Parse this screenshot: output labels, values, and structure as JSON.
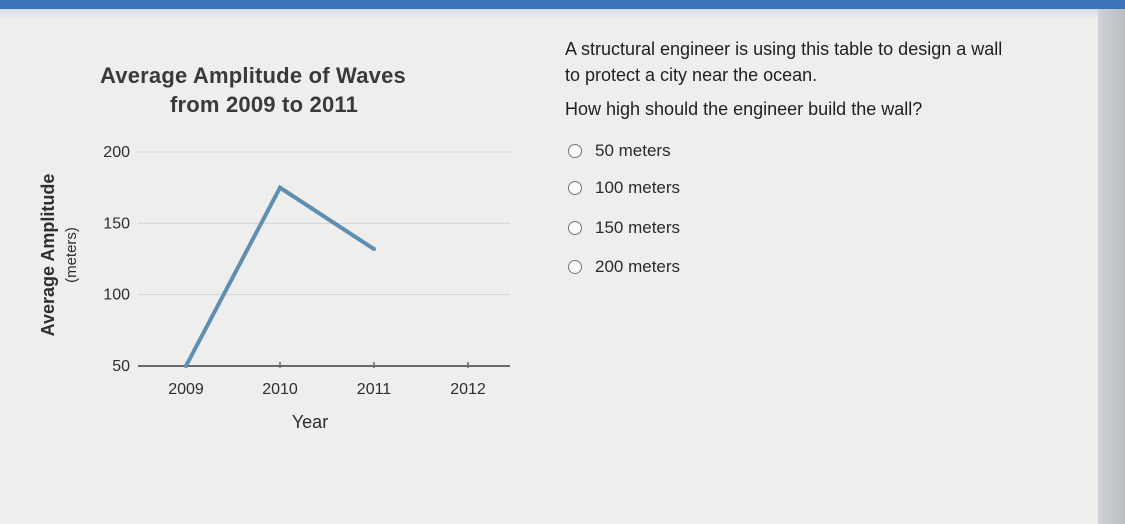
{
  "chart_data": {
    "type": "line",
    "title": "Average Amplitude of Waves",
    "subtitle": "from 2009 to 2011",
    "xlabel": "Year",
    "ylabel": "Average Amplitude",
    "ylabel_unit": "(meters)",
    "x_ticks": [
      "2009",
      "2010",
      "2011",
      "2012"
    ],
    "y_ticks": [
      "50",
      "100",
      "150",
      "200"
    ],
    "ylim": [
      50,
      200
    ],
    "xlim": [
      2009,
      2012
    ],
    "grid": "horizontal",
    "series": [
      {
        "x": [
          2009,
          2010,
          2011
        ],
        "y": [
          50,
          175,
          132
        ],
        "color": "#5f8fb0"
      }
    ]
  },
  "question": {
    "lines": [
      "A structural engineer is using this table to design a wall",
      "to protect a city near the ocean.",
      "How high should the engineer build the wall?"
    ],
    "options": [
      "50 meters",
      "100 meters",
      "150 meters",
      "200 meters"
    ]
  }
}
